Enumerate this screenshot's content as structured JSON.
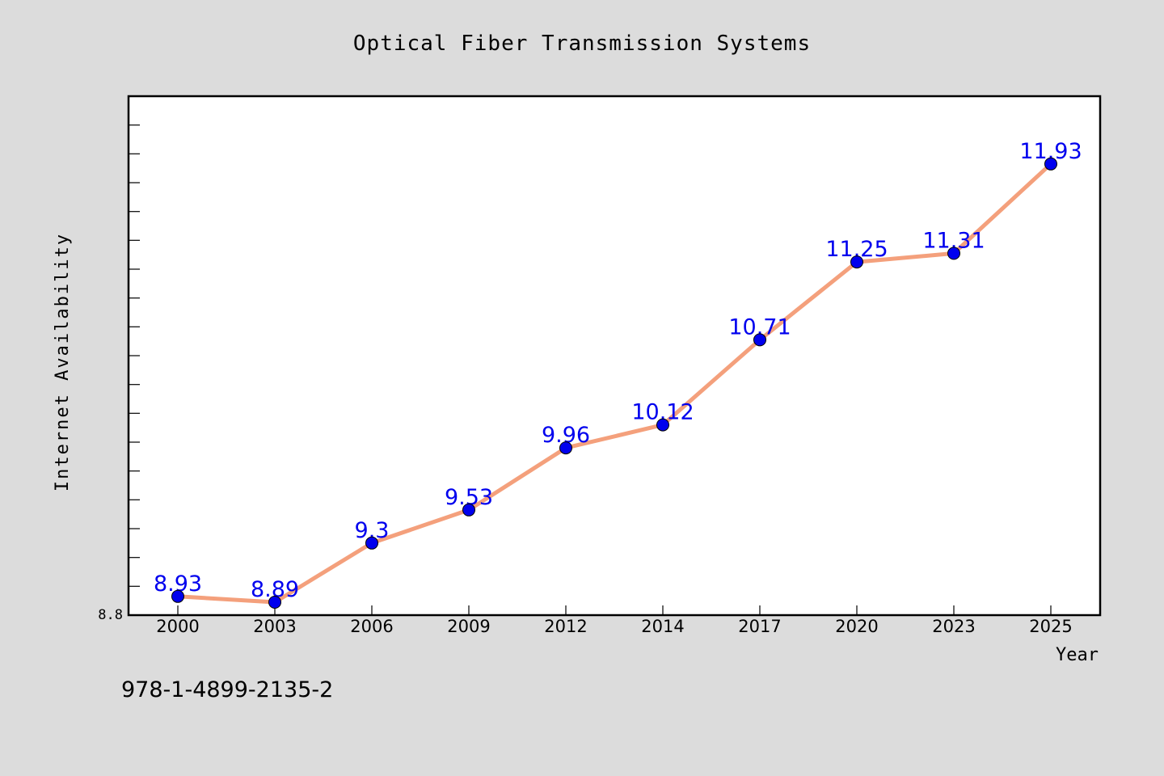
{
  "chart_data": {
    "type": "line",
    "title": "Optical Fiber Transmission Systems",
    "xlabel": "Year",
    "ylabel": "Internet Availability",
    "categories": [
      "2000",
      "2003",
      "2006",
      "2009",
      "2012",
      "2014",
      "2017",
      "2020",
      "2023",
      "2025"
    ],
    "series": [
      {
        "values": [
          8.93,
          8.89,
          9.3,
          9.53,
          9.96,
          10.12,
          10.71,
          11.25,
          11.31,
          11.93
        ]
      }
    ],
    "ylim": [
      8.8,
      12.4
    ],
    "y_tick_labels": [
      "8.8"
    ],
    "grid": false,
    "legend": "none",
    "colors": {
      "line": "#f4a07c",
      "marker": "#0000ee",
      "data_label": "#0000ee",
      "background": "#dcdcdc",
      "plot_background": "#ffffff"
    }
  },
  "footer": {
    "isbn": "978-1-4899-2135-2"
  }
}
